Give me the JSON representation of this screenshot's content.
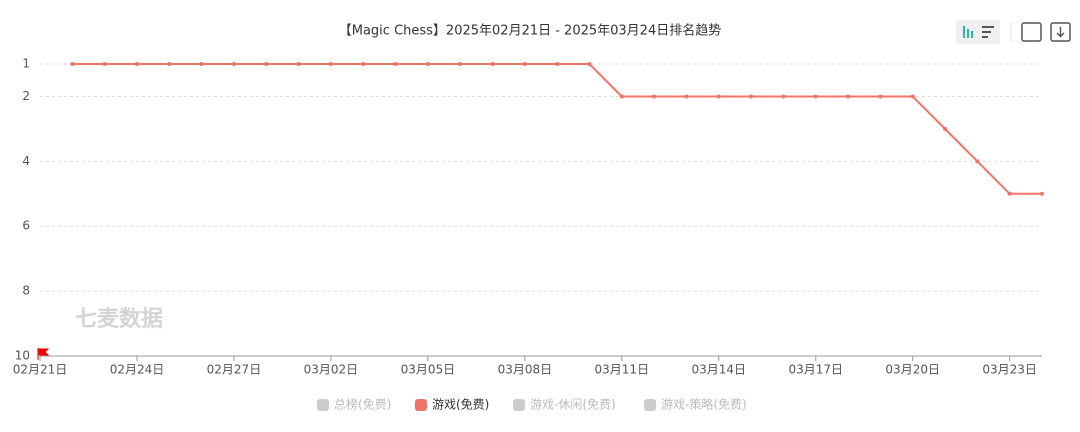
{
  "chart_data": {
    "type": "line",
    "title": "【Magic Chess】2025年02月21日 - 2025年03月24日排名趋势",
    "watermark": "七麦数据",
    "categories": [
      "02月21日",
      null,
      null,
      "02月24日",
      null,
      null,
      "02月27日",
      null,
      null,
      "03月02日",
      null,
      null,
      "03月05日",
      null,
      null,
      "03月08日",
      null,
      null,
      "03月11日",
      null,
      null,
      "03月14日",
      null,
      null,
      "03月17日",
      null,
      null,
      "03月20日",
      null,
      null,
      "03月23日",
      null
    ],
    "series": [
      {
        "name": "游戏(免费)",
        "color": "#f0736a",
        "values": [
          null,
          1,
          1,
          1,
          1,
          1,
          1,
          1,
          1,
          1,
          1,
          1,
          1,
          1,
          1,
          1,
          1,
          1,
          2,
          2,
          2,
          2,
          2,
          2,
          2,
          2,
          2,
          2,
          3,
          4,
          5,
          5
        ]
      }
    ],
    "legend_inactive": {
      "before": [
        "总榜(免费)"
      ],
      "after": [
        "游戏-休闲(免费)",
        "游戏-策略(免费)"
      ],
      "color": "#cccccc"
    },
    "ylim": [
      1,
      10
    ],
    "y_inverted": true,
    "yticks": [
      1,
      2,
      4,
      6,
      8,
      10
    ],
    "grid": true
  }
}
